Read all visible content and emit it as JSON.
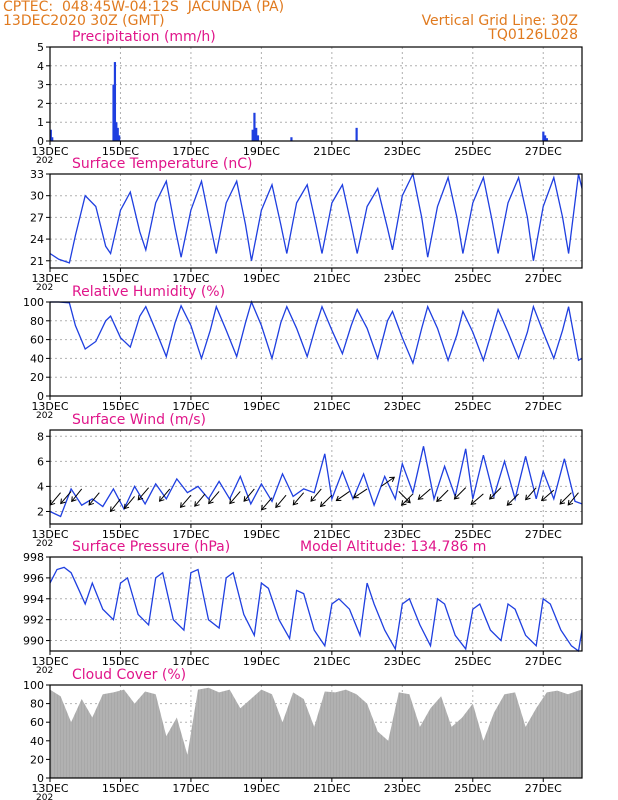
{
  "header": {
    "line1_left": "CPTEC:  048:45W-04:12S  JACUNDA (PA)",
    "line2_left": "13DEC2020 30Z (GMT)",
    "line1_right": "Vertical Grid Line: 30Z",
    "line2_right": "TQ0126L028"
  },
  "colors": {
    "header": "#e07a1f",
    "title": "#e0158a",
    "series": "#1f3fe0",
    "cloud": "#a8a8a8",
    "wind_arrow": "#000000"
  },
  "x_ticks": [
    "13DEC",
    "15DEC",
    "17DEC",
    "19DEC",
    "21DEC",
    "23DEC",
    "25DEC",
    "27DEC"
  ],
  "x_tick_days": [
    13,
    15,
    17,
    19,
    21,
    23,
    25,
    27
  ],
  "x_range_days": [
    13,
    28.1
  ],
  "year_fragment": "202",
  "chart_data": [
    {
      "type": "bar",
      "title": "Precipitation (mm/h)",
      "ylim": [
        0,
        5
      ],
      "yticks": [
        "0",
        "1",
        "2",
        "3",
        "4",
        "5"
      ],
      "x": [
        13.02,
        13.06,
        14.8,
        14.84,
        14.88,
        14.92,
        14.96,
        18.75,
        18.8,
        18.85,
        18.9,
        19.85,
        21.7,
        27.0,
        27.05,
        27.1
      ],
      "values": [
        0.6,
        0.2,
        3.0,
        4.2,
        1.0,
        0.7,
        0.3,
        0.6,
        1.5,
        0.7,
        0.3,
        0.2,
        0.7,
        0.5,
        0.3,
        0.15
      ]
    },
    {
      "type": "line",
      "title": "Surface Temperature (nC)",
      "ylim": [
        20,
        33
      ],
      "yticks": [
        "21",
        "24",
        "27",
        "30",
        "33"
      ],
      "x": [
        13.0,
        13.25,
        13.55,
        13.72,
        14.0,
        14.3,
        14.58,
        14.72,
        15.0,
        15.28,
        15.55,
        15.72,
        16.0,
        16.3,
        16.55,
        16.72,
        17.0,
        17.3,
        17.55,
        17.72,
        18.0,
        18.3,
        18.55,
        18.72,
        19.0,
        19.3,
        19.55,
        19.72,
        20.0,
        20.3,
        20.55,
        20.72,
        21.0,
        21.3,
        21.55,
        21.72,
        22.0,
        22.3,
        22.58,
        22.72,
        23.0,
        23.3,
        23.55,
        23.72,
        24.0,
        24.3,
        24.55,
        24.72,
        25.0,
        25.3,
        25.55,
        25.72,
        26.0,
        26.3,
        26.55,
        26.72,
        27.0,
        27.3,
        27.55,
        27.72,
        28.0,
        28.1
      ],
      "values": [
        22.0,
        21.2,
        20.7,
        24.5,
        30.0,
        28.5,
        23.0,
        22.0,
        28.0,
        30.5,
        25.0,
        22.5,
        29.0,
        32.0,
        25.5,
        21.5,
        28.0,
        32.0,
        26.0,
        22.0,
        29.0,
        32.0,
        26.0,
        21.0,
        28.0,
        31.5,
        26.0,
        22.0,
        29.0,
        31.5,
        26.0,
        22.0,
        29.0,
        31.5,
        26.0,
        22.0,
        28.5,
        31.0,
        25.5,
        22.5,
        30.0,
        33.0,
        27.0,
        21.5,
        28.5,
        32.5,
        27.0,
        22.0,
        29.0,
        32.5,
        26.5,
        22.0,
        29.0,
        32.5,
        27.0,
        21.0,
        28.5,
        32.5,
        27.0,
        22.0,
        33.0,
        31.0
      ]
    },
    {
      "type": "line",
      "title": "Relative Humidity (%)",
      "ylim": [
        0,
        100
      ],
      "yticks": [
        "0",
        "20",
        "40",
        "60",
        "80",
        "100"
      ],
      "x": [
        13.0,
        13.25,
        13.55,
        13.72,
        14.0,
        14.3,
        14.58,
        14.72,
        15.0,
        15.28,
        15.55,
        15.72,
        16.0,
        16.3,
        16.55,
        16.72,
        17.0,
        17.3,
        17.55,
        17.72,
        18.0,
        18.3,
        18.55,
        18.72,
        19.0,
        19.3,
        19.55,
        19.72,
        20.0,
        20.3,
        20.55,
        20.72,
        21.0,
        21.3,
        21.55,
        21.72,
        22.0,
        22.3,
        22.58,
        22.72,
        23.0,
        23.3,
        23.55,
        23.72,
        24.0,
        24.3,
        24.55,
        24.72,
        25.0,
        25.3,
        25.55,
        25.72,
        26.0,
        26.3,
        26.55,
        26.72,
        27.0,
        27.3,
        27.55,
        27.72,
        28.0,
        28.1
      ],
      "values": [
        100,
        100,
        99,
        75,
        50,
        58,
        80,
        85,
        62,
        52,
        85,
        95,
        70,
        42,
        78,
        96,
        75,
        40,
        70,
        95,
        70,
        42,
        78,
        100,
        75,
        40,
        78,
        95,
        72,
        42,
        75,
        95,
        70,
        45,
        75,
        92,
        72,
        40,
        80,
        90,
        62,
        35,
        72,
        95,
        72,
        38,
        65,
        90,
        68,
        38,
        70,
        92,
        68,
        40,
        68,
        95,
        68,
        40,
        70,
        95,
        38,
        40
      ]
    },
    {
      "type": "line",
      "title": "Surface Wind (m/s)",
      "ylim": [
        1,
        8.5
      ],
      "yticks": [
        "2",
        "4",
        "6",
        "8"
      ],
      "x": [
        13.0,
        13.3,
        13.6,
        13.9,
        14.2,
        14.5,
        14.8,
        15.1,
        15.4,
        15.7,
        16.0,
        16.3,
        16.6,
        16.9,
        17.2,
        17.5,
        17.8,
        18.1,
        18.4,
        18.7,
        19.0,
        19.3,
        19.6,
        19.9,
        20.2,
        20.5,
        20.8,
        21.0,
        21.3,
        21.6,
        21.9,
        22.2,
        22.5,
        22.8,
        23.0,
        23.3,
        23.6,
        23.9,
        24.2,
        24.5,
        24.8,
        25.0,
        25.3,
        25.6,
        25.9,
        26.2,
        26.5,
        26.8,
        27.0,
        27.3,
        27.6,
        27.9,
        28.1
      ],
      "values": [
        2.0,
        1.6,
        3.8,
        2.5,
        3.0,
        2.4,
        3.8,
        2.2,
        4.0,
        2.6,
        4.2,
        3.0,
        4.6,
        3.5,
        4.0,
        3.0,
        4.4,
        3.0,
        4.8,
        2.6,
        4.2,
        2.8,
        5.0,
        3.2,
        3.8,
        3.5,
        6.6,
        3.0,
        5.2,
        3.0,
        5.0,
        2.5,
        4.8,
        3.0,
        5.8,
        3.5,
        7.2,
        3.0,
        5.6,
        3.2,
        7.0,
        3.0,
        6.5,
        3.2,
        6.0,
        3.0,
        6.4,
        3.0,
        5.2,
        3.0,
        6.2,
        2.8,
        2.6
      ],
      "arrows_x": [
        13.3,
        13.6,
        13.9,
        14.4,
        15.0,
        15.4,
        15.8,
        16.4,
        17.0,
        17.4,
        17.8,
        18.4,
        18.8,
        19.3,
        19.7,
        20.2,
        20.7,
        21.0,
        21.5,
        22.0,
        22.4,
        22.9,
        23.3,
        23.8,
        24.3,
        24.8,
        25.3,
        25.8,
        26.3,
        26.8,
        27.3,
        27.8,
        28.0
      ],
      "arrows_speed": [
        3.5,
        3.6,
        3.8,
        3.5,
        3.0,
        3.2,
        3.9,
        3.8,
        3.3,
        3.4,
        3.6,
        3.6,
        3.8,
        3.1,
        3.3,
        3.5,
        3.8,
        3.3,
        3.6,
        3.8,
        4.0,
        3.6,
        3.4,
        3.8,
        3.7,
        3.9,
        3.4,
        3.9,
        3.4,
        3.9,
        3.7,
        3.5,
        3.5
      ],
      "arrows_dx": [
        -0.5,
        -0.6,
        -0.4,
        -0.5,
        -0.4,
        -0.5,
        -0.6,
        -0.5,
        -0.6,
        -0.5,
        -0.6,
        -0.6,
        -0.5,
        -0.6,
        -0.5,
        -0.6,
        -0.5,
        -0.6,
        -1.0,
        -0.9,
        1.0,
        0.8,
        -0.8,
        -0.7,
        -0.8,
        -0.8,
        -0.7,
        -0.7,
        -0.8,
        -0.7,
        -0.7,
        -0.6,
        -0.5
      ],
      "arrows_dy": [
        -0.6,
        -0.7,
        -0.5,
        -0.6,
        -0.5,
        -0.6,
        -0.7,
        -0.6,
        -0.7,
        -0.6,
        -0.7,
        -0.7,
        -0.6,
        -0.7,
        -0.6,
        -0.7,
        -0.6,
        -0.6,
        -0.7,
        -0.6,
        0.7,
        -0.8,
        -0.8,
        -0.6,
        -0.8,
        -0.8,
        -0.6,
        -0.7,
        -0.8,
        -0.8,
        -0.6,
        -0.6,
        -0.6
      ]
    },
    {
      "type": "line",
      "title": "Surface Pressure (hPa)",
      "annotation": "Model Altitude: 134.786 m",
      "ylim": [
        989,
        998
      ],
      "yticks": [
        "990",
        "992",
        "994",
        "996",
        "998"
      ],
      "x": [
        13.0,
        13.2,
        13.4,
        13.6,
        13.8,
        14.0,
        14.2,
        14.5,
        14.8,
        15.0,
        15.2,
        15.5,
        15.8,
        16.0,
        16.2,
        16.5,
        16.8,
        17.0,
        17.2,
        17.5,
        17.8,
        18.0,
        18.2,
        18.5,
        18.8,
        19.0,
        19.2,
        19.5,
        19.8,
        20.0,
        20.2,
        20.5,
        20.8,
        21.0,
        21.2,
        21.5,
        21.8,
        22.0,
        22.2,
        22.5,
        22.8,
        23.0,
        23.2,
        23.5,
        23.8,
        24.0,
        24.2,
        24.5,
        24.8,
        25.0,
        25.2,
        25.5,
        25.8,
        26.0,
        26.2,
        26.5,
        26.8,
        27.0,
        27.2,
        27.5,
        27.8,
        28.0,
        28.1
      ],
      "values": [
        995.5,
        996.8,
        997.0,
        996.5,
        995.0,
        993.5,
        995.5,
        993.0,
        992.0,
        995.5,
        996.0,
        992.5,
        991.5,
        996.0,
        996.5,
        992.0,
        991.0,
        996.5,
        996.8,
        992.0,
        991.2,
        996.0,
        996.5,
        992.5,
        990.5,
        995.5,
        995.0,
        992.0,
        990.2,
        994.8,
        994.5,
        991.0,
        989.5,
        993.5,
        994.0,
        993.0,
        990.5,
        995.5,
        993.5,
        991.0,
        989.2,
        993.5,
        994.0,
        991.5,
        989.5,
        994.0,
        993.5,
        990.5,
        989.2,
        993.0,
        993.5,
        991.0,
        990.0,
        993.5,
        993.0,
        990.5,
        989.5,
        994.0,
        993.5,
        991.0,
        989.5,
        989.0,
        991.0
      ]
    },
    {
      "type": "area",
      "title": "Cloud Cover (%)",
      "ylim": [
        0,
        100
      ],
      "yticks": [
        "0",
        "20",
        "40",
        "60",
        "80",
        "100"
      ],
      "x": [
        13.0,
        13.3,
        13.6,
        13.9,
        14.2,
        14.5,
        14.8,
        15.1,
        15.4,
        15.7,
        16.0,
        16.3,
        16.6,
        16.9,
        17.2,
        17.5,
        17.8,
        18.1,
        18.4,
        18.7,
        19.0,
        19.3,
        19.6,
        19.9,
        20.2,
        20.5,
        20.8,
        21.1,
        21.4,
        21.7,
        22.0,
        22.3,
        22.6,
        22.9,
        23.2,
        23.5,
        23.8,
        24.1,
        24.4,
        24.7,
        25.0,
        25.3,
        25.6,
        25.9,
        26.2,
        26.5,
        26.8,
        27.1,
        27.4,
        27.7,
        28.0,
        28.1
      ],
      "values": [
        95,
        88,
        60,
        85,
        65,
        90,
        92,
        95,
        80,
        93,
        90,
        45,
        65,
        25,
        95,
        97,
        92,
        95,
        75,
        85,
        95,
        90,
        60,
        92,
        85,
        55,
        93,
        92,
        95,
        90,
        80,
        50,
        40,
        92,
        90,
        55,
        75,
        88,
        55,
        65,
        80,
        40,
        70,
        90,
        92,
        55,
        75,
        92,
        94,
        90,
        94,
        95
      ]
    }
  ]
}
